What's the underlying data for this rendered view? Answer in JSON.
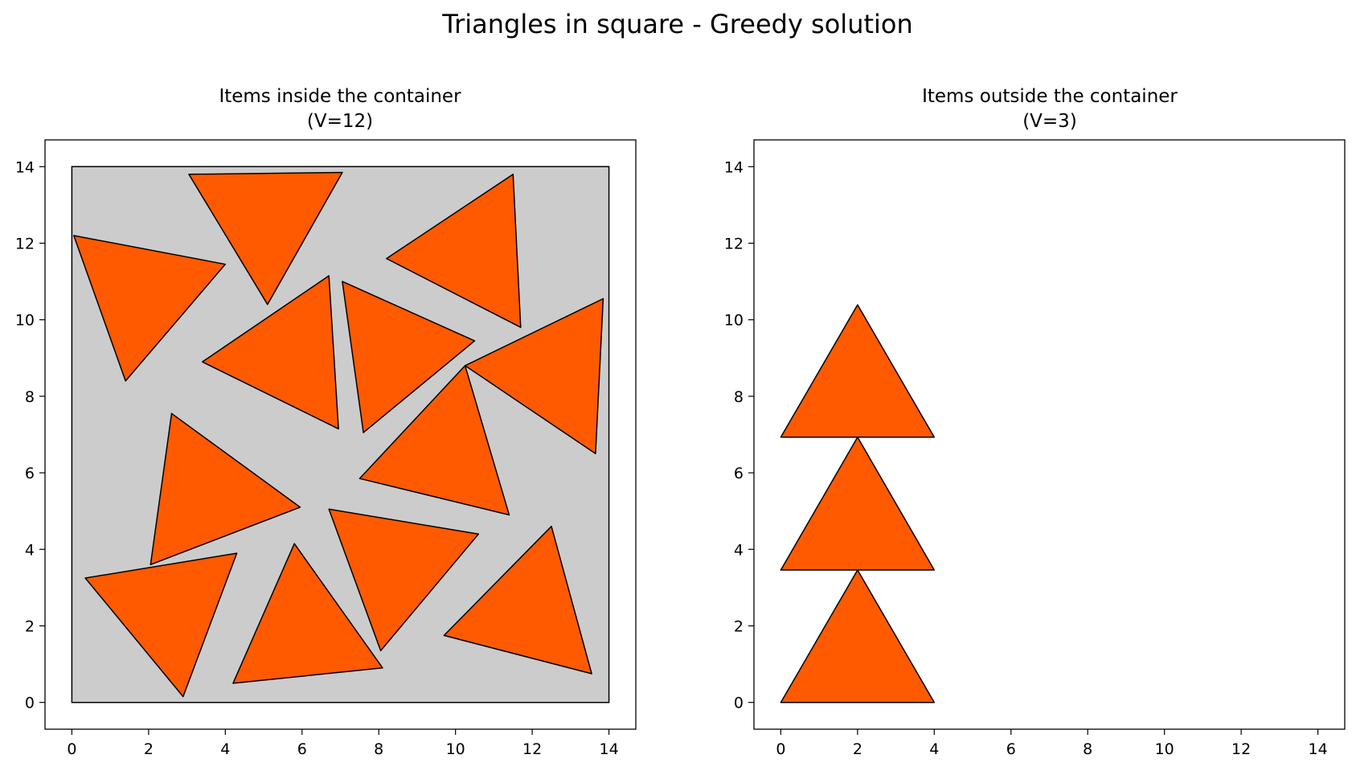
{
  "figure": {
    "title": "Triangles in square - Greedy solution"
  },
  "colors": {
    "item_fill": "#ff5a00",
    "container_fill": "#cccccc",
    "edge": "#000000"
  },
  "chart_data": [
    {
      "type": "polygon",
      "title_line1": "Items inside the container",
      "title_line2": "(V=12)",
      "xlim": [
        -0.7,
        14.7
      ],
      "ylim": [
        -0.7,
        14.7
      ],
      "xticks": [
        0,
        2,
        4,
        6,
        8,
        10,
        12,
        14
      ],
      "yticks": [
        0,
        2,
        4,
        6,
        8,
        10,
        12,
        14
      ],
      "container": [
        [
          0,
          0
        ],
        [
          14,
          0
        ],
        [
          14,
          14
        ],
        [
          0,
          14
        ]
      ],
      "items": [
        [
          [
            3.05,
            13.8
          ],
          [
            7.05,
            13.85
          ],
          [
            5.1,
            10.4
          ]
        ],
        [
          [
            0.05,
            12.2
          ],
          [
            4.0,
            11.45
          ],
          [
            1.4,
            8.4
          ]
        ],
        [
          [
            8.2,
            11.6
          ],
          [
            11.5,
            13.8
          ],
          [
            11.7,
            9.8
          ]
        ],
        [
          [
            3.4,
            8.9
          ],
          [
            6.7,
            11.15
          ],
          [
            6.95,
            7.15
          ]
        ],
        [
          [
            7.05,
            11.0
          ],
          [
            10.5,
            9.45
          ],
          [
            7.6,
            7.05
          ]
        ],
        [
          [
            10.25,
            8.8
          ],
          [
            13.85,
            10.55
          ],
          [
            13.65,
            6.5
          ]
        ],
        [
          [
            10.25,
            8.8
          ],
          [
            7.5,
            5.85
          ],
          [
            11.4,
            4.9
          ]
        ],
        [
          [
            2.6,
            7.55
          ],
          [
            5.95,
            5.1
          ],
          [
            2.05,
            3.6
          ]
        ],
        [
          [
            0.35,
            3.25
          ],
          [
            4.3,
            3.9
          ],
          [
            2.9,
            0.15
          ]
        ],
        [
          [
            5.8,
            4.15
          ],
          [
            4.2,
            0.5
          ],
          [
            8.1,
            0.9
          ]
        ],
        [
          [
            6.7,
            5.05
          ],
          [
            10.6,
            4.4
          ],
          [
            8.05,
            1.35
          ]
        ],
        [
          [
            12.5,
            4.6
          ],
          [
            9.7,
            1.75
          ],
          [
            13.55,
            0.75
          ]
        ]
      ]
    },
    {
      "type": "polygon",
      "title_line1": "Items outside the container",
      "title_line2": "(V=3)",
      "xlim": [
        -0.7,
        14.7
      ],
      "ylim": [
        -0.7,
        14.7
      ],
      "xticks": [
        0,
        2,
        4,
        6,
        8,
        10,
        12,
        14
      ],
      "yticks": [
        0,
        2,
        4,
        6,
        8,
        10,
        12,
        14
      ],
      "container": [],
      "items": [
        [
          [
            0,
            0
          ],
          [
            4,
            0
          ],
          [
            2,
            3.46
          ]
        ],
        [
          [
            0,
            3.46
          ],
          [
            4,
            3.46
          ],
          [
            2,
            6.93
          ]
        ],
        [
          [
            0,
            6.93
          ],
          [
            4,
            6.93
          ],
          [
            2,
            10.39
          ]
        ]
      ]
    }
  ]
}
